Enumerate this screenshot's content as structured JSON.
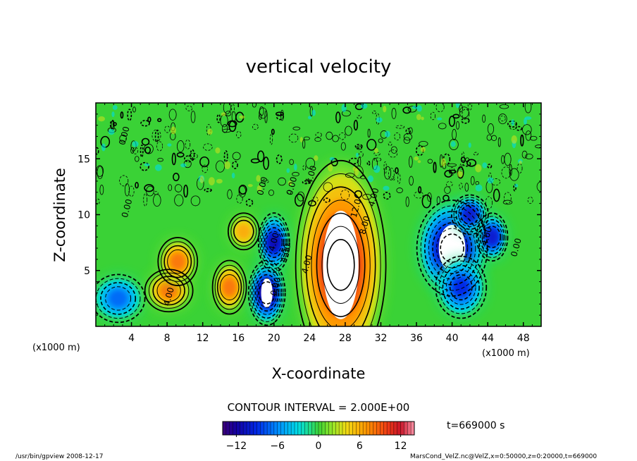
{
  "chart_data": {
    "type": "heatmap",
    "title": "vertical velocity",
    "xlabel": "X-coordinate",
    "ylabel": "Z-coordinate",
    "x_unit": "(x1000 m)",
    "x_unit_right": "(x1000 m)",
    "xlim": [
      0,
      50
    ],
    "ylim": [
      0,
      20
    ],
    "x_ticks": [
      4,
      8,
      12,
      16,
      20,
      24,
      28,
      32,
      36,
      40,
      44,
      48
    ],
    "y_ticks": [
      5,
      10,
      15
    ],
    "contour_interval_text": "CONTOUR INTERVAL = 2.000E+00",
    "contour_labels": [
      "0.00",
      "0.00",
      "0.00",
      "0.00",
      "4.00",
      "4.00",
      "4.00",
      "4.00",
      "4.00",
      "8.00",
      "12.0",
      "4.00",
      "4.00",
      "0.00",
      "0.00"
    ],
    "colorbar": {
      "min": -14,
      "max": 14,
      "tick_values": [
        -12,
        -6,
        0,
        6,
        12
      ],
      "tick_labels": [
        "−12",
        "−6",
        "0",
        "6",
        "12"
      ]
    },
    "time_text": "t=669000 s",
    "footer_left": "/usr/bin/gpview   2008-12-17",
    "footer_right": "MarsCond_VelZ.nc@VelZ,x=0:50000,z=0:20000,t=669000",
    "features": [
      {
        "x": 2.5,
        "z": 2.5,
        "w": -7
      },
      {
        "x": 8.2,
        "z": 3.2,
        "w": 8
      },
      {
        "x": 9.2,
        "z": 5.8,
        "w": 8
      },
      {
        "x": 15.0,
        "z": 3.5,
        "w": 8
      },
      {
        "x": 16.6,
        "z": 8.5,
        "w": 6
      },
      {
        "x": 19.2,
        "z": 3.0,
        "w": -13
      },
      {
        "x": 20.0,
        "z": 7.5,
        "w": -11
      },
      {
        "x": 27.5,
        "z": 5.5,
        "w": 14
      },
      {
        "x": 40.0,
        "z": 7.0,
        "w": -14
      },
      {
        "x": 42.0,
        "z": 10.0,
        "w": -10
      },
      {
        "x": 44.5,
        "z": 8.0,
        "w": -10
      },
      {
        "x": 41.0,
        "z": 3.5,
        "w": -9
      }
    ]
  }
}
